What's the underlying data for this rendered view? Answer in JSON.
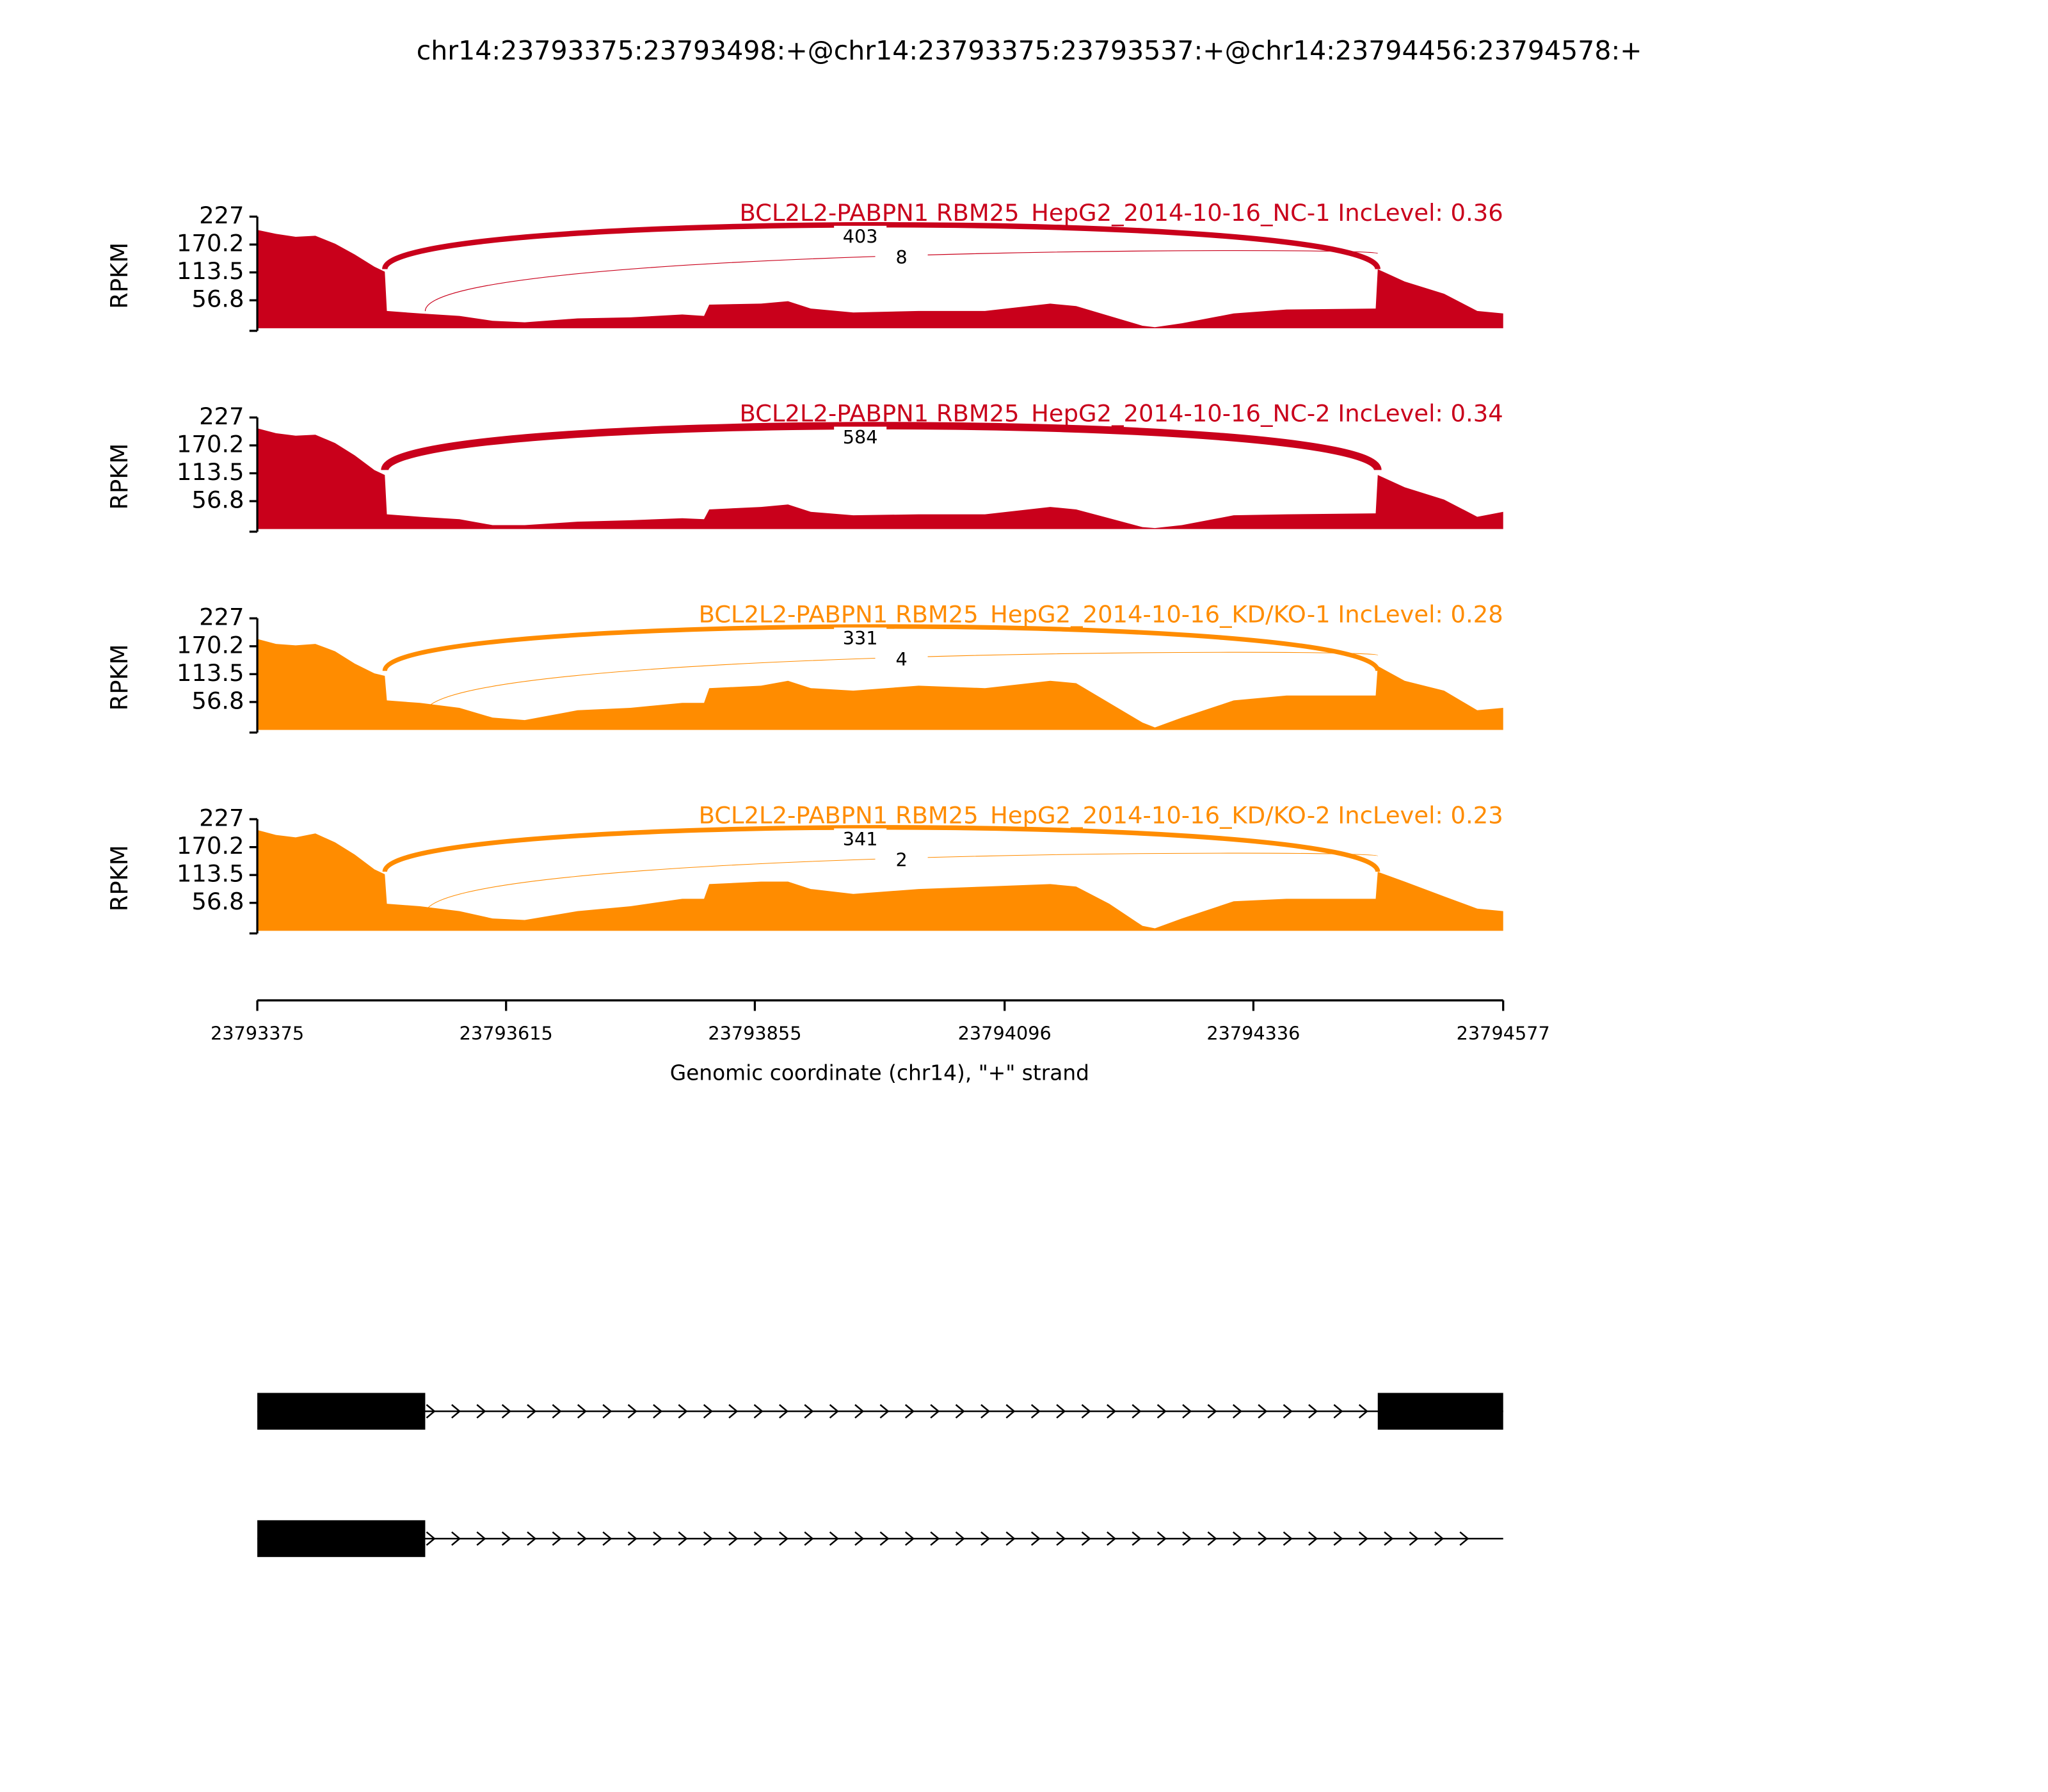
{
  "title": "chr14:23793375:23793498:+@chr14:23793375:23793537:+@chr14:23794456:23794578:+",
  "x_axis": {
    "xlabel": "Genomic coordinate (chr14), \"+\" strand",
    "xlim": [
      23793375,
      23794577
    ],
    "xticks": [
      23793375,
      23793615,
      23793855,
      23794096,
      23794336,
      23794577
    ]
  },
  "chart_data": [
    {
      "type": "area",
      "title": "BCL2L2-PABPN1 RBM25_HepG2_2014-10-16_NC-1 IncLevel: 0.36",
      "ylabel": "RPKM",
      "color": "#c9001b",
      "ylim": [
        0,
        227
      ],
      "yticks": [
        56.8,
        113.5,
        170.2,
        227
      ],
      "x": [
        23793375,
        23793393,
        23793412,
        23793431,
        23793450,
        23793469,
        23793488,
        23793498,
        23793500,
        23793532,
        23793570,
        23793602,
        23793633,
        23793684,
        23793735,
        23793785,
        23793806,
        23793811,
        23793861,
        23793887,
        23793909,
        23793950,
        23794013,
        23794077,
        23794140,
        23794165,
        23794197,
        23794229,
        23794241,
        23794267,
        23794317,
        23794368,
        23794454,
        23794456,
        23794482,
        23794520,
        23794552,
        23794577
      ],
      "values": [
        200,
        192,
        186,
        188,
        172,
        150,
        125,
        115,
        35,
        30,
        25,
        15,
        12,
        20,
        22,
        28,
        25,
        48,
        50,
        55,
        40,
        32,
        35,
        35,
        50,
        45,
        25,
        5,
        2,
        10,
        30,
        38,
        40,
        120,
        95,
        70,
        35,
        30
      ],
      "junctions": [
        {
          "start": 23793498,
          "end": 23794456,
          "count": 403
        },
        {
          "start": 23793537,
          "end": 23794456,
          "count": 8
        }
      ]
    },
    {
      "type": "area",
      "title": "BCL2L2-PABPN1 RBM25_HepG2_2014-10-16_NC-2 IncLevel: 0.34",
      "ylabel": "RPKM",
      "color": "#c9001b",
      "ylim": [
        0,
        227
      ],
      "yticks": [
        56.8,
        113.5,
        170.2,
        227
      ],
      "x": [
        23793375,
        23793393,
        23793412,
        23793431,
        23793450,
        23793469,
        23793488,
        23793498,
        23793500,
        23793532,
        23793570,
        23793602,
        23793633,
        23793684,
        23793735,
        23793785,
        23793806,
        23793811,
        23793861,
        23793887,
        23793909,
        23793950,
        23794013,
        23794077,
        23794140,
        23794165,
        23794197,
        23794229,
        23794241,
        23794267,
        23794317,
        23794368,
        23794454,
        23794456,
        23794482,
        23794520,
        23794552,
        23794577
      ],
      "values": [
        205,
        195,
        190,
        192,
        175,
        150,
        120,
        110,
        30,
        25,
        20,
        8,
        8,
        15,
        18,
        22,
        20,
        40,
        45,
        50,
        35,
        28,
        30,
        30,
        45,
        40,
        22,
        4,
        2,
        8,
        28,
        30,
        32,
        110,
        85,
        60,
        25,
        35
      ],
      "junctions": [
        {
          "start": 23793498,
          "end": 23794456,
          "count": 584
        }
      ]
    },
    {
      "type": "area",
      "title": "BCL2L2-PABPN1 RBM25_HepG2_2014-10-16_KD/KO-1 IncLevel: 0.28",
      "ylabel": "RPKM",
      "color": "#ff8c00",
      "ylim": [
        0,
        227
      ],
      "yticks": [
        56.8,
        113.5,
        170.2,
        227
      ],
      "x": [
        23793375,
        23793393,
        23793412,
        23793431,
        23793450,
        23793469,
        23793488,
        23793498,
        23793500,
        23793532,
        23793570,
        23793602,
        23793633,
        23793684,
        23793735,
        23793785,
        23793806,
        23793811,
        23793861,
        23793887,
        23793909,
        23793950,
        23794013,
        23794077,
        23794140,
        23794165,
        23794197,
        23794229,
        23794241,
        23794267,
        23794317,
        23794368,
        23794454,
        23794456,
        23794482,
        23794520,
        23794552,
        23794577
      ],
      "values": [
        185,
        175,
        172,
        175,
        160,
        135,
        115,
        110,
        60,
        55,
        45,
        25,
        20,
        40,
        45,
        55,
        55,
        85,
        90,
        100,
        85,
        80,
        90,
        85,
        100,
        95,
        55,
        15,
        5,
        25,
        60,
        70,
        70,
        130,
        100,
        80,
        40,
        45
      ],
      "junctions": [
        {
          "start": 23793498,
          "end": 23794456,
          "count": 331
        },
        {
          "start": 23793537,
          "end": 23794456,
          "count": 4
        }
      ]
    },
    {
      "type": "area",
      "title": "BCL2L2-PABPN1 RBM25_HepG2_2014-10-16_KD/KO-2 IncLevel: 0.23",
      "ylabel": "RPKM",
      "color": "#ff8c00",
      "ylim": [
        0,
        227
      ],
      "yticks": [
        56.8,
        113.5,
        170.2,
        227
      ],
      "x": [
        23793375,
        23793393,
        23793412,
        23793431,
        23793450,
        23793469,
        23793488,
        23793498,
        23793500,
        23793532,
        23793570,
        23793602,
        23793633,
        23793684,
        23793735,
        23793785,
        23793806,
        23793811,
        23793861,
        23793887,
        23793909,
        23793950,
        23794013,
        23794077,
        23794140,
        23794165,
        23794197,
        23794229,
        23794241,
        23794267,
        23794317,
        23794368,
        23794454,
        23794456,
        23794482,
        23794520,
        23794552,
        23794577
      ],
      "values": [
        205,
        195,
        190,
        198,
        180,
        155,
        125,
        115,
        55,
        50,
        40,
        25,
        22,
        40,
        50,
        65,
        65,
        95,
        100,
        100,
        85,
        75,
        85,
        90,
        95,
        90,
        55,
        10,
        5,
        25,
        60,
        65,
        65,
        120,
        100,
        70,
        45,
        40
      ],
      "junctions": [
        {
          "start": 23793498,
          "end": 23794456,
          "count": 341
        },
        {
          "start": 23793537,
          "end": 23794456,
          "count": 2
        }
      ]
    }
  ],
  "transcripts": [
    {
      "start": 23793375,
      "end": 23794577,
      "exons": [
        [
          23793375,
          23793537
        ],
        [
          23794456,
          23794577
        ]
      ]
    },
    {
      "start": 23793375,
      "end": 23794577,
      "exons": [
        [
          23793375,
          23793537
        ]
      ]
    }
  ]
}
